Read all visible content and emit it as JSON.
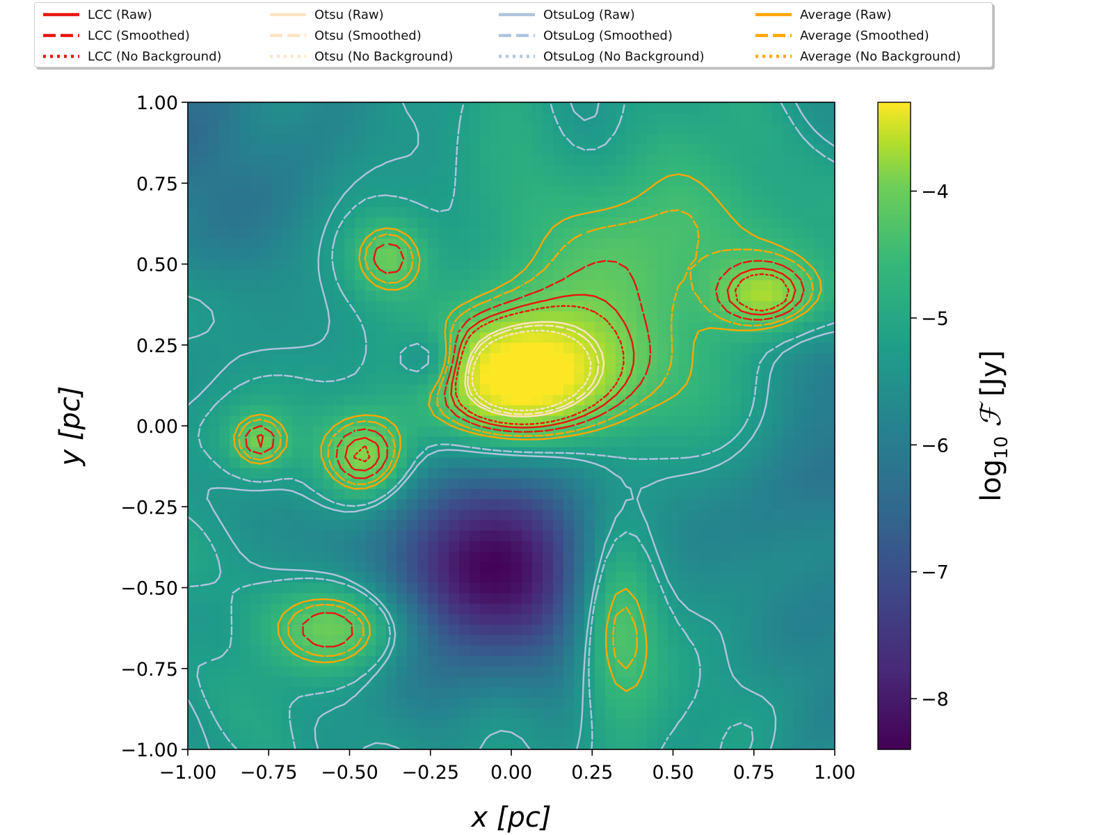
{
  "chart_data": {
    "type": "heatmap",
    "title": "",
    "xlabel": "x [pc]",
    "ylabel": "y [pc]",
    "colorbar_label": "log10 ℱ [Jy]",
    "colorbar_label_parts": {
      "main": "log",
      "sub": "10",
      "sym": "ℱ",
      "unit": "[Jy]"
    },
    "colormap": "viridis",
    "xlim": [
      -1.0,
      1.0
    ],
    "ylim": [
      -1.0,
      1.0
    ],
    "clim": [
      -8.4,
      -3.3
    ],
    "x_ticks": [
      -1.0,
      -0.75,
      -0.5,
      -0.25,
      0.0,
      0.25,
      0.5,
      0.75,
      1.0
    ],
    "x_tick_labels": [
      "−1.00",
      "−0.75",
      "−0.50",
      "−0.25",
      "0.00",
      "0.25",
      "0.50",
      "0.75",
      "1.00"
    ],
    "y_ticks": [
      -1.0,
      -0.75,
      -0.5,
      -0.25,
      0.0,
      0.25,
      0.5,
      0.75,
      1.0
    ],
    "y_tick_labels": [
      "−1.00",
      "−0.75",
      "−0.50",
      "−0.25",
      "0.00",
      "0.25",
      "0.50",
      "0.75",
      "1.00"
    ],
    "colorbar_ticks": [
      -8,
      -7,
      -6,
      -5,
      -4
    ],
    "colorbar_tick_labels": [
      "−8",
      "−7",
      "−6",
      "−5",
      "−4"
    ],
    "grid": false,
    "legend_position": "top",
    "legend_columns": 4,
    "series": [
      {
        "name": "LCC (Raw)",
        "color": "#e8150f",
        "style": "solid"
      },
      {
        "name": "LCC (Smoothed)",
        "color": "#e8150f",
        "style": "dashed"
      },
      {
        "name": "LCC (No Background)",
        "color": "#e8150f",
        "style": "dotted"
      },
      {
        "name": "Otsu (Raw)",
        "color": "#ffe3c4",
        "style": "solid"
      },
      {
        "name": "Otsu (Smoothed)",
        "color": "#ffe3c4",
        "style": "dashed"
      },
      {
        "name": "Otsu (No Background)",
        "color": "#ffe3c4",
        "style": "dotted"
      },
      {
        "name": "OtsuLog (Raw)",
        "color": "#b0c4de",
        "style": "solid"
      },
      {
        "name": "OtsuLog (Smoothed)",
        "color": "#b0c4de",
        "style": "dashed"
      },
      {
        "name": "OtsuLog (No Background)",
        "color": "#b0c4de",
        "style": "dotted"
      },
      {
        "name": "Average (Raw)",
        "color": "#ffa500",
        "style": "solid"
      },
      {
        "name": "Average (Smoothed)",
        "color": "#ffa500",
        "style": "dashed"
      },
      {
        "name": "Average (No Background)",
        "color": "#ffa500",
        "style": "dotted"
      }
    ],
    "field_components": [
      {
        "x": 0.05,
        "y": 0.15,
        "sx": 0.22,
        "sy": 0.14,
        "amp": 2.5
      },
      {
        "x": -0.45,
        "y": -0.1,
        "sx": 0.1,
        "sy": 0.1,
        "amp": 1.6
      },
      {
        "x": 0.32,
        "y": -0.6,
        "sx": 0.1,
        "sy": 0.22,
        "amp": 1.7
      },
      {
        "x": -0.5,
        "y": -0.62,
        "sx": 0.17,
        "sy": 0.1,
        "amp": 1.5
      },
      {
        "x": 0.78,
        "y": 0.4,
        "sx": 0.1,
        "sy": 0.07,
        "amp": 1.2
      },
      {
        "x": -0.38,
        "y": 0.52,
        "sx": 0.08,
        "sy": 0.08,
        "amp": 1.0
      },
      {
        "x": -0.78,
        "y": -0.05,
        "sx": 0.06,
        "sy": 0.06,
        "amp": 1.0
      },
      {
        "x": 0.5,
        "y": 0.5,
        "sx": 0.4,
        "sy": 0.25,
        "amp": 0.9
      },
      {
        "x": -0.05,
        "y": -0.45,
        "sx": 0.27,
        "sy": 0.24,
        "amp": -2.7
      },
      {
        "x": -0.95,
        "y": 0.85,
        "sx": 0.28,
        "sy": 0.28,
        "amp": -0.9
      },
      {
        "x": 0.98,
        "y": -0.2,
        "sx": 0.2,
        "sy": 0.5,
        "amp": -0.7
      },
      {
        "x": -0.25,
        "y": 0.2,
        "sx": 0.07,
        "sy": 0.07,
        "amp": -0.9
      }
    ],
    "field_base": -5.6,
    "contour_levels": [
      {
        "series": "OtsuLog (Raw)",
        "level": -5.7
      },
      {
        "series": "OtsuLog (Smoothed)",
        "level": -5.55
      },
      {
        "series": "Average (Raw)",
        "level": -5.0
      },
      {
        "series": "Average (Smoothed)",
        "level": -4.85
      },
      {
        "series": "LCC (Smoothed)",
        "level": -4.65
      },
      {
        "series": "LCC (Raw)",
        "level": -4.45
      },
      {
        "series": "LCC (No Background)",
        "level": -4.3
      },
      {
        "series": "Otsu (Raw)",
        "level": -3.95
      },
      {
        "series": "Otsu (Smoothed)",
        "level": -3.85
      },
      {
        "series": "Otsu (No Background)",
        "level": -3.7
      }
    ]
  }
}
